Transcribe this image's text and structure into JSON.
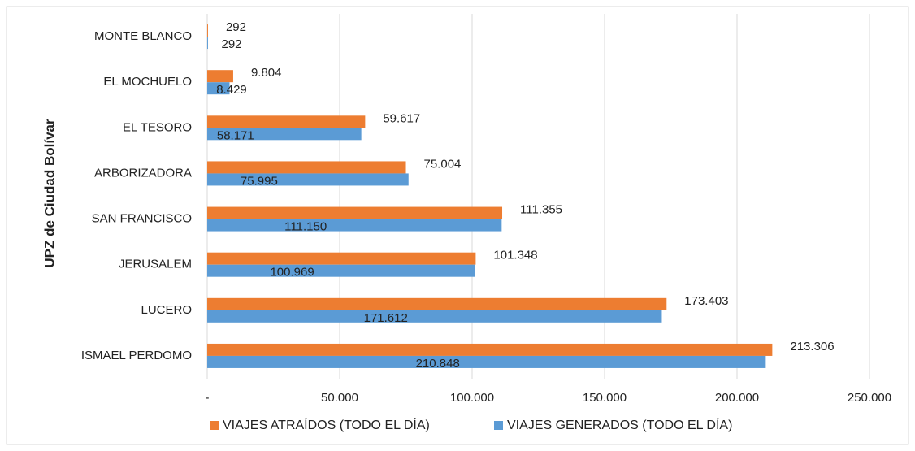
{
  "chart_data": {
    "type": "bar",
    "orientation": "horizontal",
    "y_axis_label": "UPZ de Ciudad Bolívar",
    "categories": [
      "MONTE BLANCO",
      "EL MOCHUELO",
      "EL TESORO",
      "ARBORIZADORA",
      "SAN FRANCISCO",
      "JERUSALEM",
      "LUCERO",
      "ISMAEL PERDOMO"
    ],
    "series": [
      {
        "name": "VIAJES ATRAÍDOS (TODO EL DÍA)",
        "color": "#ed7d31",
        "values": [
          292,
          9804,
          59617,
          75004,
          111355,
          101348,
          173403,
          213306
        ],
        "value_labels": [
          "292",
          "9.804",
          "59.617",
          "75.004",
          "111.355",
          "101.348",
          "173.403",
          "213.306"
        ]
      },
      {
        "name": "VIAJES GENERADOS (TODO EL DÍA)",
        "color": "#5b9bd5",
        "values": [
          292,
          8429,
          58171,
          75995,
          111150,
          100969,
          171612,
          210848
        ],
        "value_labels": [
          "292",
          "8.429",
          "58.171",
          "75.995",
          "111.150",
          "100.969",
          "171.612",
          "210.848"
        ]
      }
    ],
    "xlim": [
      0,
      250000
    ],
    "xticks": [
      {
        "value": 0,
        "label": "-"
      },
      {
        "value": 50000,
        "label": "50.000"
      },
      {
        "value": 100000,
        "label": "100.000"
      },
      {
        "value": 150000,
        "label": "150.000"
      },
      {
        "value": 200000,
        "label": "200.000"
      },
      {
        "value": 250000,
        "label": "250.000"
      }
    ],
    "grid": true,
    "legend": "bottom"
  }
}
